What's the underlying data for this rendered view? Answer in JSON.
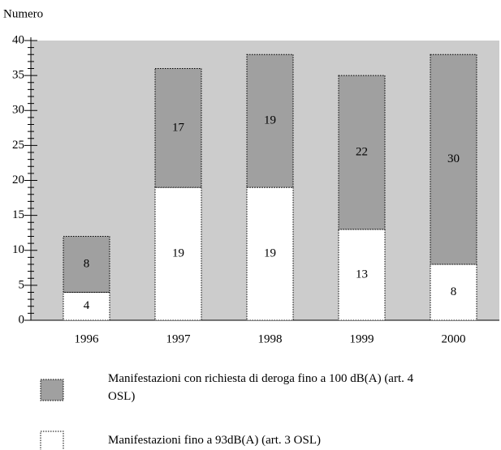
{
  "chart_data": {
    "type": "stacked_bar",
    "y_label": "Numero",
    "categories": [
      "1996",
      "1997",
      "1998",
      "1999",
      "2000"
    ],
    "series": [
      {
        "name": "Manifestazioni fino a 93dB(A) (art. 3 OSL)",
        "color": "#ffffff",
        "values": [
          4,
          19,
          19,
          13,
          8
        ]
      },
      {
        "name": "Manifestazioni con richiesta di deroga fino a 100 dB(A) (art. 4 OSL)",
        "color": "#a0a0a0",
        "values": [
          8,
          17,
          19,
          22,
          30
        ]
      }
    ],
    "ylim": [
      0,
      40
    ],
    "yticks": [
      0,
      5,
      10,
      15,
      20,
      25,
      30,
      35,
      40
    ],
    "yticks_minor": [
      1,
      2,
      3,
      4,
      6,
      7,
      8,
      9,
      11,
      12,
      13,
      14,
      16,
      17,
      18,
      19,
      21,
      22,
      23,
      24,
      26,
      27,
      28,
      29,
      31,
      32,
      33,
      34,
      36,
      37,
      38,
      39
    ],
    "background": "#cccccc"
  }
}
